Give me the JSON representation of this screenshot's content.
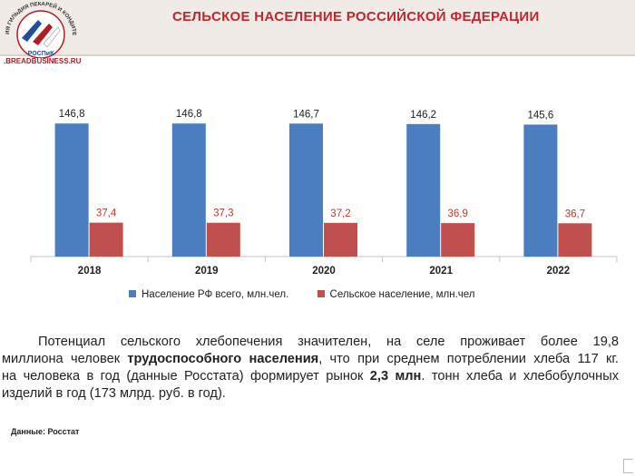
{
  "header": {
    "title": "СЕЛЬСКОЕ НАСЕЛЕНИЕ РОССИЙСКОЙ ФЕДЕРАЦИИ",
    "logo_site": ".BREADBUSINESS.RU",
    "logo_text": "РОСПиК",
    "logo_arc_text": "ИЯ ГИЛЬДИЯ ПЕКАРЕЙ И КОНДИТЕРОВ"
  },
  "chart_data": {
    "type": "bar",
    "categories": [
      "2018",
      "2019",
      "2020",
      "2021",
      "2022"
    ],
    "series": [
      {
        "name": "Население РФ всего, млн.чел.",
        "values": [
          146.8,
          146.8,
          146.7,
          146.2,
          145.6
        ],
        "labels": [
          "146,8",
          "146,8",
          "146,7",
          "146,2",
          "145,6"
        ],
        "color": "#4a7ec1"
      },
      {
        "name": "Сельское население, млн.чел",
        "values": [
          37.4,
          37.3,
          37.2,
          36.9,
          36.7
        ],
        "labels": [
          "37,4",
          "37,3",
          "37,2",
          "36,9",
          "36,7"
        ],
        "color": "#c0504d"
      }
    ],
    "ylim": [
      0,
      160
    ],
    "grid": false,
    "legend_position": "bottom",
    "label_color_series2": "#c0392b"
  },
  "text": {
    "paragraph_lines": [
      "Потенциал сельского хлебопечения значителен, на селе проживает более 19,8",
      "миллиона человек |трудоспособного населения|, что при среднем потреблении хлеба 117 кг.",
      "на человека в год (данные Росстата) формирует рынок |2,3 млн|. тонн хлеба и хлебобулочных",
      "изделий в год (173 млрд. руб. в год)."
    ],
    "source": "Данные: Росстат"
  }
}
